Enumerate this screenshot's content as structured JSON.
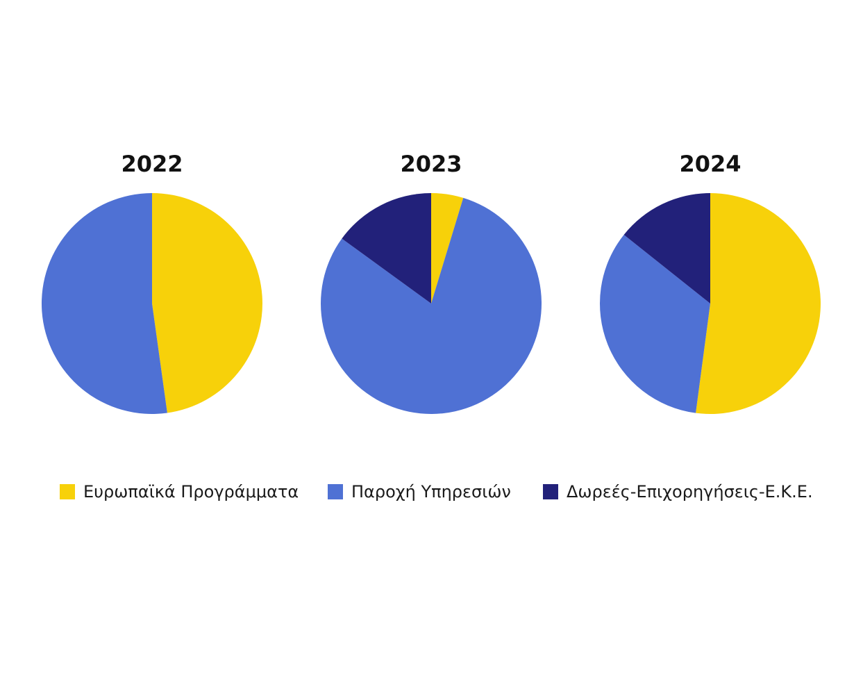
{
  "colors": {
    "european": "#f7d10a",
    "services": "#4f71d4",
    "donations": "#22217a"
  },
  "chart_data": [
    {
      "type": "pie",
      "title": "2022",
      "labels": [
        "Ευρωπαϊκά Προγράμματα",
        "Παροχή Υπηρεσιών",
        "Δωρεές-Επιχορηγήσεις-Ε.Κ.Ε."
      ],
      "values": [
        47.8,
        52.2,
        0
      ]
    },
    {
      "type": "pie",
      "title": "2023",
      "labels": [
        "Ευρωπαϊκά Προγράμματα",
        "Παροχή Υπηρεσιών",
        "Δωρεές-Επιχορηγήσεις-Ε.Κ.Ε."
      ],
      "values": [
        4.7,
        80.3,
        15.0
      ]
    },
    {
      "type": "pie",
      "title": "2024",
      "labels": [
        "Ευρωπαϊκά Προγράμματα",
        "Παροχή Υπηρεσιών",
        "Δωρεές-Επιχορηγήσεις-Ε.Κ.Ε."
      ],
      "values": [
        52.1,
        33.6,
        14.3
      ]
    }
  ],
  "legend": {
    "position": "bottom",
    "items": [
      {
        "label": "Ευρωπαϊκά Προγράμματα",
        "color": "#f7d10a"
      },
      {
        "label": "Παροχή Υπηρεσιών",
        "color": "#4f71d4"
      },
      {
        "label": "Δωρεές-Επιχορηγήσεις-Ε.Κ.Ε.",
        "color": "#22217a"
      }
    ]
  }
}
